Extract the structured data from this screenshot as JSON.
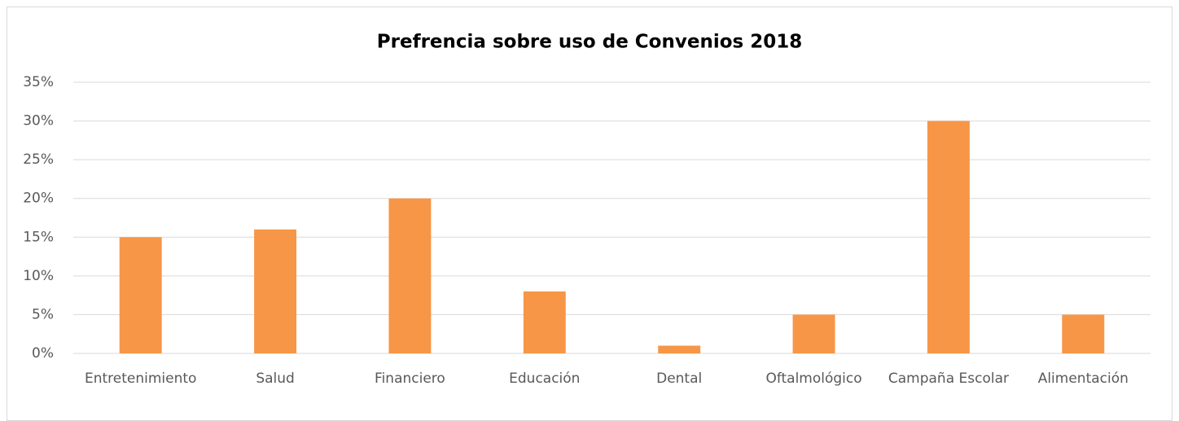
{
  "chart_data": {
    "type": "bar",
    "title": "Prefrencia sobre uso de Convenios 2018",
    "categories": [
      "Entretenimiento",
      "Salud",
      "Financiero",
      "Educación",
      "Dental",
      "Oftalmológico",
      "Campaña Escolar",
      "Alimentación"
    ],
    "values": [
      15,
      16,
      20,
      8,
      1,
      5,
      30,
      5
    ],
    "color": "#f79646",
    "ylim": [
      0,
      35
    ],
    "yticks": [
      {
        "value": 0,
        "label": "0%"
      },
      {
        "value": 5,
        "label": "5%"
      },
      {
        "value": 10,
        "label": "10%"
      },
      {
        "value": 15,
        "label": "15%"
      },
      {
        "value": 20,
        "label": "20%"
      },
      {
        "value": 25,
        "label": "25%"
      },
      {
        "value": 30,
        "label": "30%"
      },
      {
        "value": 35,
        "label": "35%"
      }
    ],
    "grid": true
  }
}
